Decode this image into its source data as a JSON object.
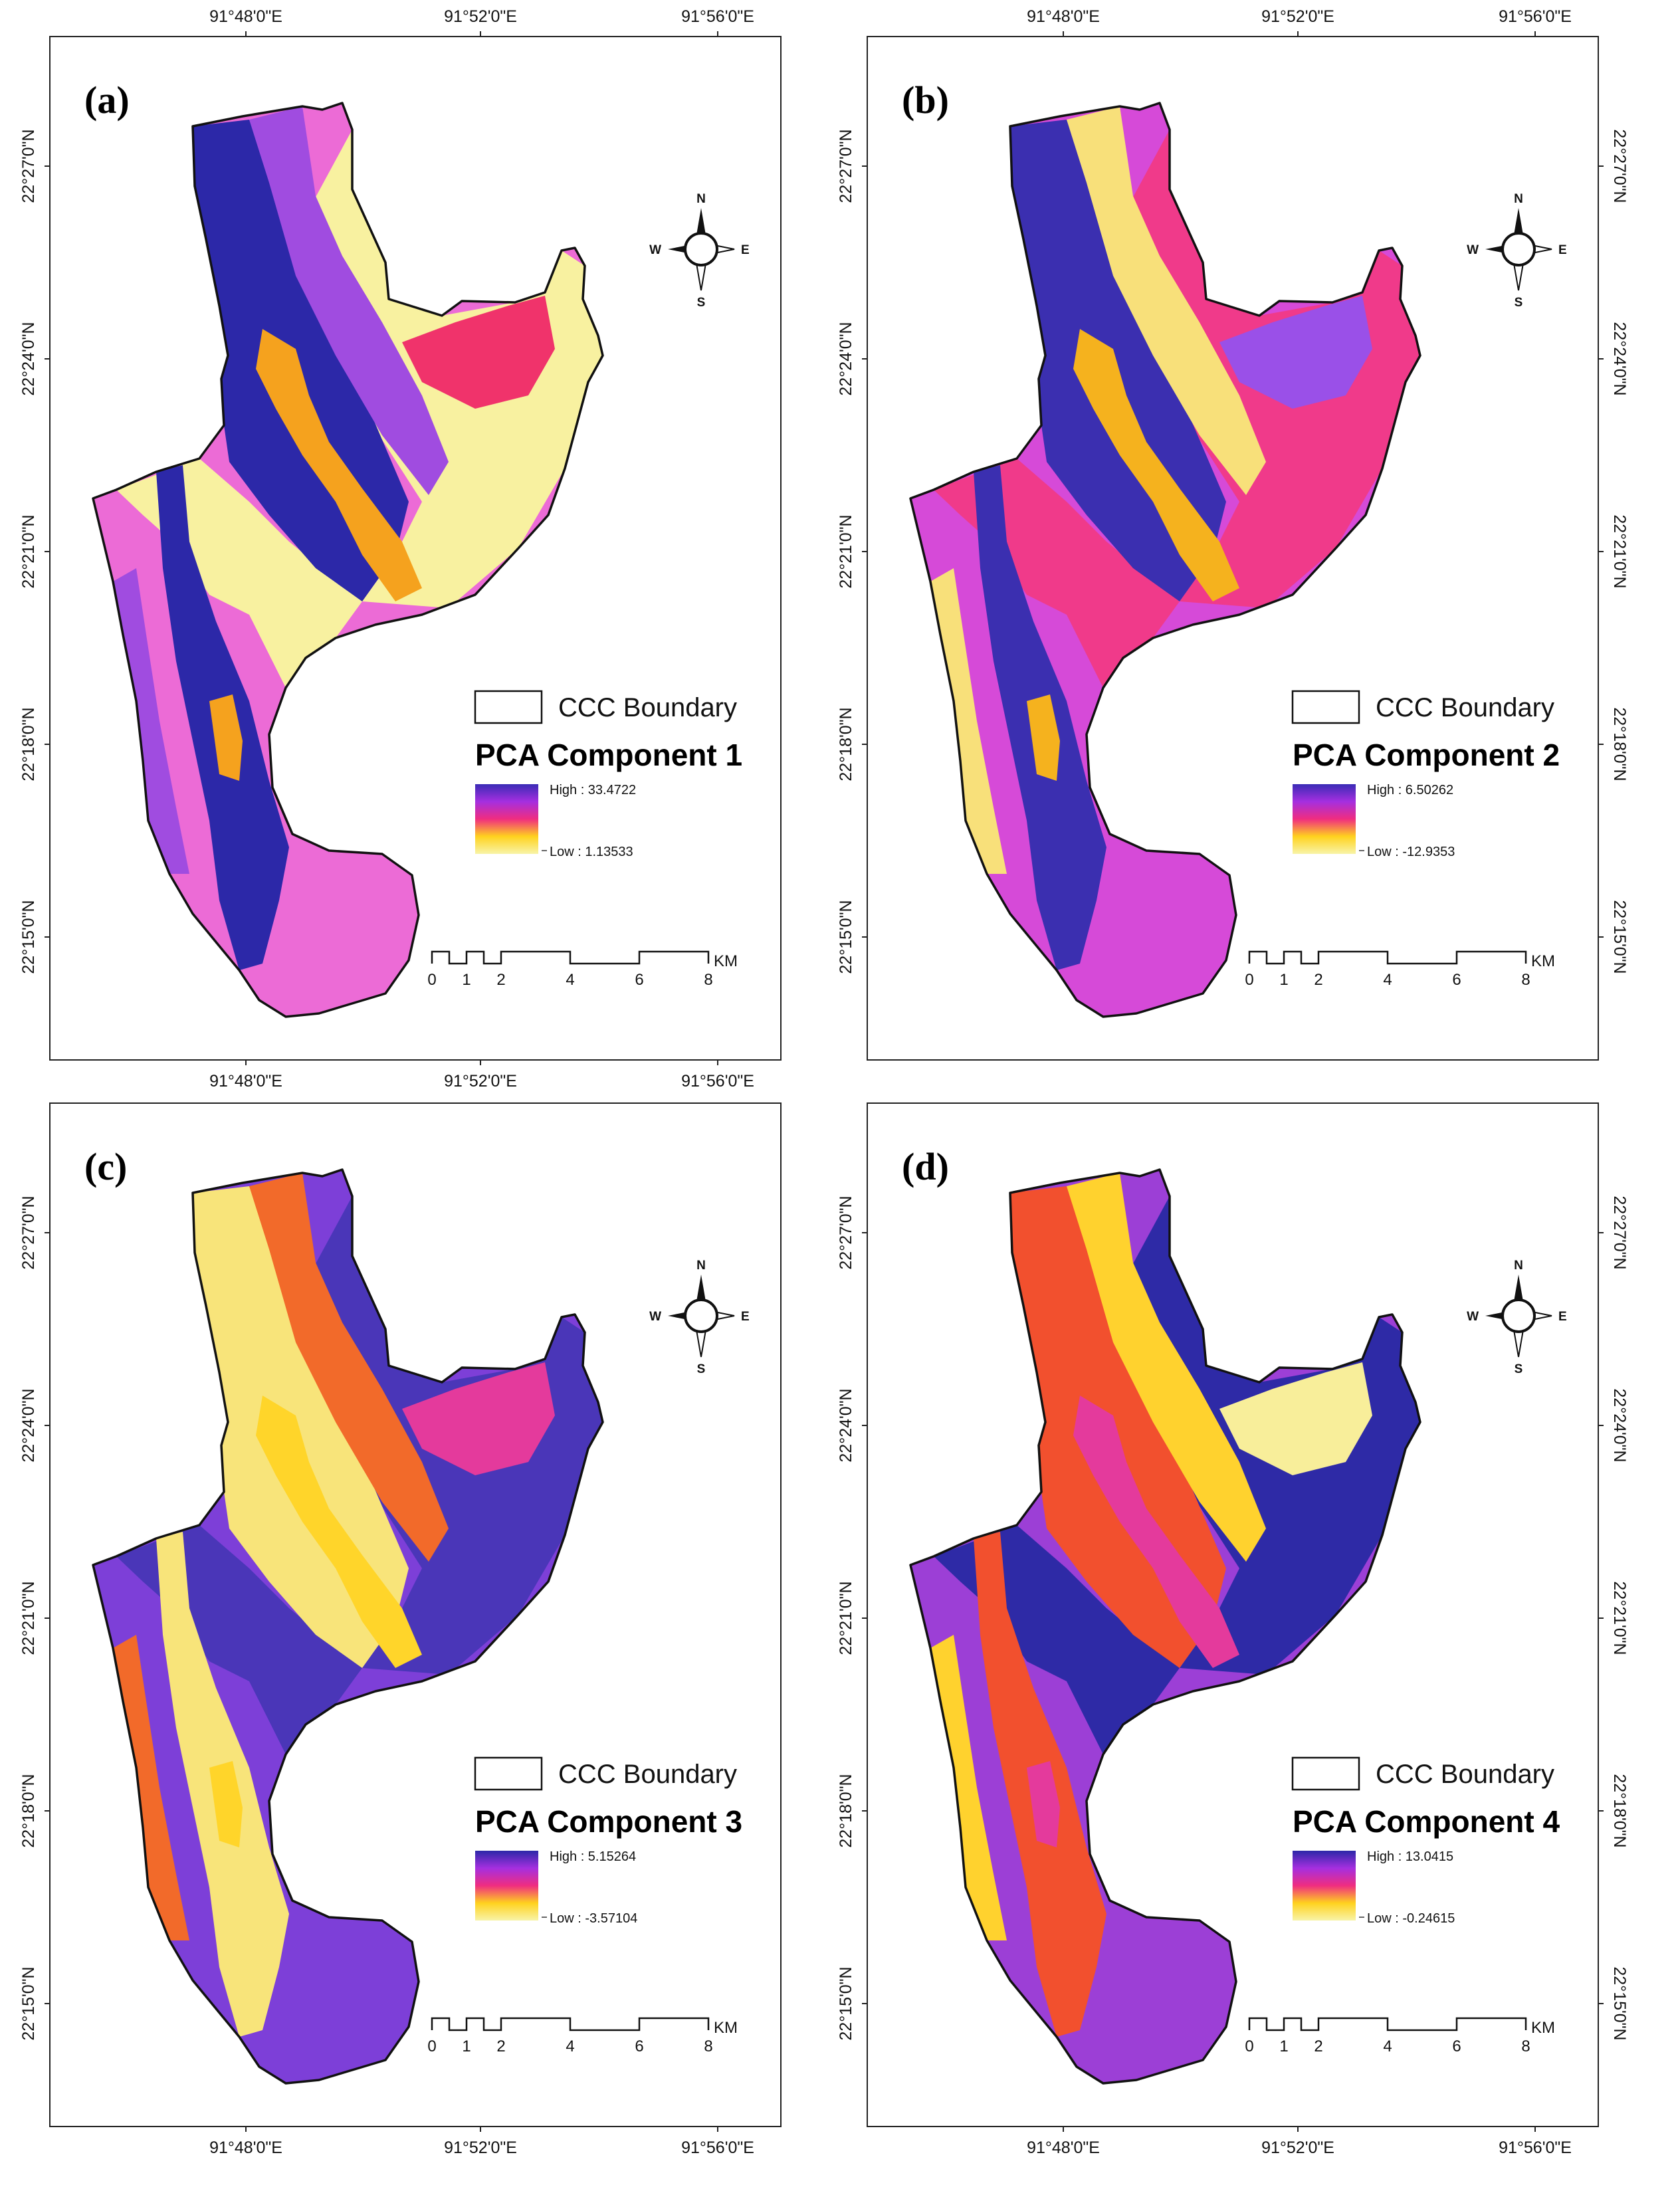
{
  "panels": [
    {
      "label": "(a)",
      "legend": {
        "boundary": "CCC Boundary",
        "title": "PCA Component 1",
        "high": "High : 33.4722",
        "low": "Low : 1.13533",
        "ramp": [
          "#3a2bb5",
          "#a52fe0",
          "#f02d80",
          "#ffd21e",
          "#f8f4a8"
        ]
      },
      "top_ticks": [
        "91°48'0\"E",
        "91°52'0\"E",
        "91°56'0\"E"
      ],
      "bottom_ticks": [
        "91°48'0\"E",
        "91°52'0\"E",
        "91°56'0\"E"
      ],
      "left_ticks": [
        "22°27'0\"N",
        "22°24'0\"N",
        "22°21'0\"N",
        "22°18'0\"N",
        "22°15'0\"N"
      ],
      "right_ticks": [],
      "base_color": "#ec6bd6",
      "zones": [
        {
          "color": "#f8f1a0"
        },
        {
          "color": "#2c28a8"
        },
        {
          "color": "#a04ce0"
        },
        {
          "color": "#f0336b"
        },
        {
          "color": "#f5a21e"
        }
      ]
    },
    {
      "label": "(b)",
      "legend": {
        "boundary": "CCC Boundary",
        "title": "PCA Component 2",
        "high": "High : 6.50262",
        "low": "Low : -12.9353",
        "ramp": [
          "#3a2bb5",
          "#a52fe0",
          "#f02d80",
          "#ffd21e",
          "#f8f4a8"
        ]
      },
      "top_ticks": [
        "91°48'0\"E",
        "91°52'0\"E",
        "91°56'0\"E"
      ],
      "bottom_ticks": [],
      "left_ticks": [
        "22°27'0\"N",
        "22°24'0\"N",
        "22°21'0\"N",
        "22°18'0\"N",
        "22°15'0\"N"
      ],
      "right_ticks": [
        "22°27'0\"N",
        "22°24'0\"N",
        "22°21'0\"N",
        "22°18'0\"N",
        "22°15'0\"N"
      ],
      "base_color": "#d64ad8",
      "zones": [
        {
          "color": "#f03a8a"
        },
        {
          "color": "#3b2fb0"
        },
        {
          "color": "#f8e07a"
        },
        {
          "color": "#9a50e8"
        },
        {
          "color": "#f5b21e"
        }
      ]
    },
    {
      "label": "(c)",
      "legend": {
        "boundary": "CCC Boundary",
        "title": "PCA Component 3",
        "high": "High : 5.15264",
        "low": "Low : -3.57104",
        "ramp": [
          "#2c28a8",
          "#a52fe0",
          "#f02d80",
          "#ffd21e",
          "#f8f4a8"
        ]
      },
      "top_ticks": [],
      "bottom_ticks": [
        "91°48'0\"E",
        "91°52'0\"E",
        "91°56'0\"E"
      ],
      "left_ticks": [
        "22°27'0\"N",
        "22°24'0\"N",
        "22°21'0\"N",
        "22°18'0\"N",
        "22°15'0\"N"
      ],
      "right_ticks": [],
      "base_color": "#7d3fd8",
      "zones": [
        {
          "color": "#4a36b8"
        },
        {
          "color": "#f8e47a"
        },
        {
          "color": "#f26a2a"
        },
        {
          "color": "#e43a9c"
        },
        {
          "color": "#ffd52a"
        }
      ]
    },
    {
      "label": "(d)",
      "legend": {
        "boundary": "CCC Boundary",
        "title": "PCA Component 4",
        "high": "High : 13.0415",
        "low": "Low : -0.24615",
        "ramp": [
          "#2c28a8",
          "#a52fe0",
          "#f02d80",
          "#ffd21e",
          "#f8f4a8"
        ]
      },
      "top_ticks": [],
      "bottom_ticks": [
        "91°48'0\"E",
        "91°52'0\"E",
        "91°56'0\"E"
      ],
      "left_ticks": [
        "22°27'0\"N",
        "22°24'0\"N",
        "22°21'0\"N",
        "22°18'0\"N",
        "22°15'0\"N"
      ],
      "right_ticks": [
        "22°27'0\"N",
        "22°24'0\"N",
        "22°21'0\"N",
        "22°18'0\"N",
        "22°15'0\"N"
      ],
      "base_color": "#9c3fd6",
      "zones": [
        {
          "color": "#2e2aa6"
        },
        {
          "color": "#f2502e"
        },
        {
          "color": "#ffd22e"
        },
        {
          "color": "#f8ee9a"
        },
        {
          "color": "#e43a9c"
        }
      ]
    }
  ],
  "compass": {
    "n": "N",
    "s": "S",
    "e": "E",
    "w": "W"
  },
  "scale": {
    "labels": [
      "0",
      "1",
      "2",
      "4",
      "6",
      "8"
    ],
    "unit": "KM"
  },
  "boundary_color": "#111111"
}
